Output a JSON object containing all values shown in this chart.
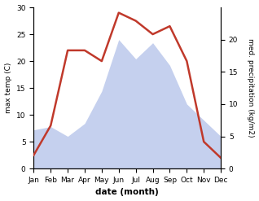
{
  "months": [
    "Jan",
    "Feb",
    "Mar",
    "Apr",
    "May",
    "Jun",
    "Jul",
    "Aug",
    "Sep",
    "Oct",
    "Nov",
    "Dec"
  ],
  "temperature": [
    2.5,
    8.0,
    22.0,
    22.0,
    20.0,
    29.0,
    27.5,
    25.0,
    26.5,
    20.0,
    5.0,
    2.0
  ],
  "precipitation": [
    6.0,
    6.5,
    5.0,
    7.0,
    12.0,
    20.0,
    17.0,
    19.5,
    16.0,
    10.0,
    7.5,
    5.0
  ],
  "temp_color": "#c0392b",
  "precip_color_fill": "#c5d0ee",
  "ylabel_left": "max temp (C)",
  "ylabel_right": "med. precipitation (kg/m2)",
  "xlabel": "date (month)",
  "ylim_left": [
    0,
    30
  ],
  "ylim_right": [
    0,
    25
  ],
  "yticks_left": [
    0,
    5,
    10,
    15,
    20,
    25,
    30
  ],
  "yticks_right": [
    0,
    5,
    10,
    15,
    20
  ],
  "background_color": "#ffffff"
}
